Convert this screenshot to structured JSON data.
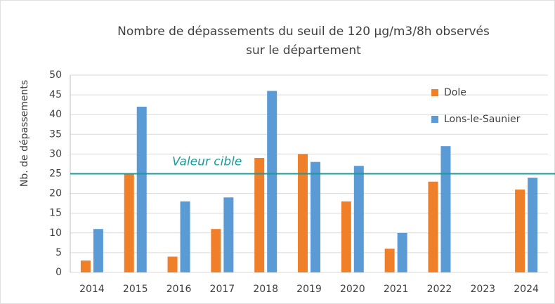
{
  "chart_data": {
    "type": "bar",
    "title": [
      "Nombre de dépassements du seuil de 120 µg/m3/8h observés",
      "sur le département"
    ],
    "y_label": "Nb. de dépassements",
    "categories": [
      "2014",
      "2015",
      "2016",
      "2017",
      "2018",
      "2019",
      "2020",
      "2021",
      "2022",
      "2023",
      "2024"
    ],
    "series": [
      {
        "name": "Dole",
        "color": "#f07f2a",
        "values": [
          3,
          25,
          4,
          11,
          29,
          30,
          18,
          6,
          23,
          null,
          21
        ]
      },
      {
        "name": "Lons-le-Saunier",
        "color": "#5b9bd5",
        "values": [
          11,
          42,
          18,
          19,
          46,
          28,
          27,
          10,
          32,
          null,
          24
        ]
      }
    ],
    "ylim": [
      0,
      50
    ],
    "yticks": [
      0,
      5,
      10,
      15,
      20,
      25,
      30,
      35,
      40,
      45,
      50
    ],
    "grid": true,
    "legend": "upper right",
    "reference_line": {
      "value": 25,
      "label": "Valeur cible",
      "color": "#1a9a98"
    }
  }
}
